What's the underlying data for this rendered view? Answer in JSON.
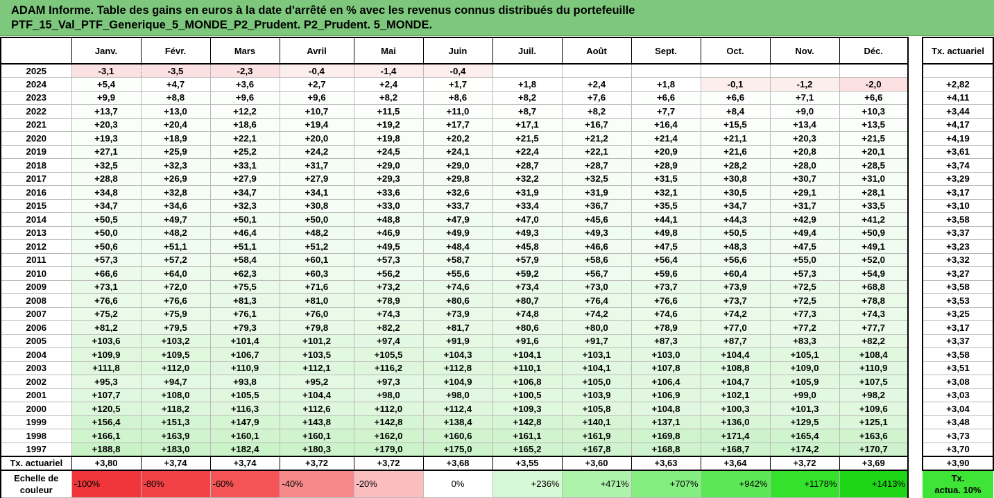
{
  "title": {
    "line1": "ADAM Informe. Table des gains en euros à la date d'arrêté en % avec les revenus connus distribués du portefeuille",
    "line2": "PTF_15_Val_PTF_Generique_5_MONDE_P2_Prudent. P2_Prudent. 5_MONDE."
  },
  "months": [
    "Janv.",
    "Févr.",
    "Mars",
    "Avril",
    "Mai",
    "Juin",
    "Juil.",
    "Août",
    "Sept.",
    "Oct.",
    "Nov.",
    "Déc."
  ],
  "actuarial_header": "Tx. actuariel",
  "rows": [
    {
      "year": "2025",
      "v": [
        "-3,1",
        "-3,5",
        "-2,3",
        "-0,4",
        "-1,4",
        "-0,4",
        "",
        "",
        "",
        "",
        "",
        ""
      ],
      "act": ""
    },
    {
      "year": "2024",
      "v": [
        "+5,4",
        "+4,7",
        "+3,6",
        "+2,7",
        "+2,4",
        "+1,7",
        "+1,8",
        "+2,4",
        "+1,8",
        "-0,1",
        "-1,2",
        "-2,0"
      ],
      "act": "+2,82"
    },
    {
      "year": "2023",
      "v": [
        "+9,9",
        "+8,8",
        "+9,6",
        "+9,6",
        "+8,2",
        "+8,6",
        "+8,2",
        "+7,6",
        "+6,6",
        "+6,6",
        "+7,1",
        "+6,6"
      ],
      "act": "+4,11"
    },
    {
      "year": "2022",
      "v": [
        "+13,7",
        "+13,0",
        "+12,2",
        "+10,7",
        "+11,5",
        "+11,0",
        "+8,7",
        "+8,2",
        "+7,7",
        "+8,4",
        "+9,0",
        "+10,3"
      ],
      "act": "+3,44"
    },
    {
      "year": "2021",
      "v": [
        "+20,3",
        "+20,4",
        "+18,6",
        "+19,4",
        "+19,2",
        "+17,7",
        "+17,1",
        "+16,7",
        "+16,4",
        "+15,5",
        "+13,4",
        "+13,5"
      ],
      "act": "+4,17"
    },
    {
      "year": "2020",
      "v": [
        "+19,3",
        "+18,9",
        "+22,1",
        "+20,0",
        "+19,8",
        "+20,2",
        "+21,5",
        "+21,2",
        "+21,4",
        "+21,1",
        "+20,3",
        "+21,5"
      ],
      "act": "+4,19"
    },
    {
      "year": "2019",
      "v": [
        "+27,1",
        "+25,9",
        "+25,2",
        "+24,2",
        "+24,5",
        "+24,1",
        "+22,4",
        "+22,1",
        "+20,9",
        "+21,6",
        "+20,8",
        "+20,1"
      ],
      "act": "+3,61"
    },
    {
      "year": "2018",
      "v": [
        "+32,5",
        "+32,3",
        "+33,1",
        "+31,7",
        "+29,0",
        "+29,0",
        "+28,7",
        "+28,7",
        "+28,9",
        "+28,2",
        "+28,0",
        "+28,5"
      ],
      "act": "+3,74"
    },
    {
      "year": "2017",
      "v": [
        "+28,8",
        "+26,9",
        "+27,9",
        "+27,9",
        "+29,3",
        "+29,8",
        "+32,2",
        "+32,5",
        "+31,5",
        "+30,8",
        "+30,7",
        "+31,0"
      ],
      "act": "+3,29"
    },
    {
      "year": "2016",
      "v": [
        "+34,8",
        "+32,8",
        "+34,7",
        "+34,1",
        "+33,6",
        "+32,6",
        "+31,9",
        "+31,9",
        "+32,1",
        "+30,5",
        "+29,1",
        "+28,1"
      ],
      "act": "+3,17"
    },
    {
      "year": "2015",
      "v": [
        "+34,7",
        "+34,6",
        "+32,3",
        "+30,8",
        "+33,0",
        "+33,7",
        "+33,4",
        "+36,7",
        "+35,5",
        "+34,7",
        "+31,7",
        "+33,5"
      ],
      "act": "+3,10"
    },
    {
      "year": "2014",
      "v": [
        "+50,5",
        "+49,7",
        "+50,1",
        "+50,0",
        "+48,8",
        "+47,9",
        "+47,0",
        "+45,6",
        "+44,1",
        "+44,3",
        "+42,9",
        "+41,2"
      ],
      "act": "+3,58"
    },
    {
      "year": "2013",
      "v": [
        "+50,0",
        "+48,2",
        "+46,4",
        "+48,2",
        "+46,9",
        "+49,9",
        "+49,3",
        "+49,3",
        "+49,8",
        "+50,5",
        "+49,4",
        "+50,9"
      ],
      "act": "+3,37"
    },
    {
      "year": "2012",
      "v": [
        "+50,6",
        "+51,1",
        "+51,1",
        "+51,2",
        "+49,5",
        "+48,4",
        "+45,8",
        "+46,6",
        "+47,5",
        "+48,3",
        "+47,5",
        "+49,1"
      ],
      "act": "+3,23"
    },
    {
      "year": "2011",
      "v": [
        "+57,3",
        "+57,2",
        "+58,4",
        "+60,1",
        "+57,3",
        "+58,7",
        "+57,9",
        "+58,6",
        "+56,4",
        "+56,6",
        "+55,0",
        "+52,0"
      ],
      "act": "+3,32"
    },
    {
      "year": "2010",
      "v": [
        "+66,6",
        "+64,0",
        "+62,3",
        "+60,3",
        "+56,2",
        "+55,6",
        "+59,2",
        "+56,7",
        "+59,6",
        "+60,4",
        "+57,3",
        "+54,9"
      ],
      "act": "+3,27"
    },
    {
      "year": "2009",
      "v": [
        "+73,1",
        "+72,0",
        "+75,5",
        "+71,6",
        "+73,2",
        "+74,6",
        "+73,4",
        "+73,0",
        "+73,7",
        "+73,9",
        "+72,5",
        "+68,8"
      ],
      "act": "+3,58"
    },
    {
      "year": "2008",
      "v": [
        "+76,6",
        "+76,6",
        "+81,3",
        "+81,0",
        "+78,9",
        "+80,6",
        "+80,7",
        "+76,4",
        "+76,6",
        "+73,7",
        "+72,5",
        "+78,8"
      ],
      "act": "+3,53"
    },
    {
      "year": "2007",
      "v": [
        "+75,2",
        "+75,9",
        "+76,1",
        "+76,0",
        "+74,3",
        "+73,9",
        "+74,8",
        "+74,2",
        "+74,6",
        "+74,2",
        "+77,3",
        "+74,3"
      ],
      "act": "+3,25"
    },
    {
      "year": "2006",
      "v": [
        "+81,2",
        "+79,5",
        "+79,3",
        "+79,8",
        "+82,2",
        "+81,7",
        "+80,6",
        "+80,0",
        "+78,9",
        "+77,0",
        "+77,2",
        "+77,7"
      ],
      "act": "+3,17"
    },
    {
      "year": "2005",
      "v": [
        "+103,6",
        "+103,2",
        "+101,4",
        "+101,2",
        "+97,4",
        "+91,9",
        "+91,6",
        "+91,7",
        "+87,3",
        "+87,7",
        "+83,3",
        "+82,2"
      ],
      "act": "+3,37"
    },
    {
      "year": "2004",
      "v": [
        "+109,9",
        "+109,5",
        "+106,7",
        "+103,5",
        "+105,5",
        "+104,3",
        "+104,1",
        "+103,1",
        "+103,0",
        "+104,4",
        "+105,1",
        "+108,4"
      ],
      "act": "+3,58"
    },
    {
      "year": "2003",
      "v": [
        "+111,8",
        "+112,0",
        "+110,9",
        "+112,1",
        "+116,2",
        "+112,8",
        "+110,1",
        "+104,1",
        "+107,8",
        "+108,8",
        "+109,0",
        "+110,9"
      ],
      "act": "+3,51"
    },
    {
      "year": "2002",
      "v": [
        "+95,3",
        "+94,7",
        "+93,8",
        "+95,2",
        "+97,3",
        "+104,9",
        "+106,8",
        "+105,0",
        "+106,4",
        "+104,7",
        "+105,9",
        "+107,5"
      ],
      "act": "+3,08"
    },
    {
      "year": "2001",
      "v": [
        "+107,7",
        "+108,0",
        "+105,5",
        "+104,4",
        "+98,0",
        "+98,0",
        "+100,5",
        "+103,9",
        "+106,9",
        "+102,1",
        "+99,0",
        "+98,2"
      ],
      "act": "+3,03"
    },
    {
      "year": "2000",
      "v": [
        "+120,5",
        "+118,2",
        "+116,3",
        "+112,6",
        "+112,0",
        "+112,4",
        "+109,3",
        "+105,8",
        "+104,8",
        "+100,3",
        "+101,3",
        "+109,6"
      ],
      "act": "+3,04"
    },
    {
      "year": "1999",
      "v": [
        "+156,4",
        "+151,3",
        "+147,9",
        "+143,8",
        "+142,8",
        "+138,4",
        "+142,8",
        "+140,1",
        "+137,1",
        "+136,0",
        "+129,5",
        "+125,1"
      ],
      "act": "+3,48"
    },
    {
      "year": "1998",
      "v": [
        "+166,1",
        "+163,9",
        "+160,1",
        "+160,1",
        "+162,0",
        "+160,6",
        "+161,1",
        "+161,9",
        "+169,8",
        "+171,4",
        "+165,4",
        "+163,6"
      ],
      "act": "+3,73"
    },
    {
      "year": "1997",
      "v": [
        "+188,8",
        "+183,0",
        "+182,4",
        "+180,3",
        "+179,0",
        "+175,0",
        "+165,2",
        "+167,8",
        "+168,8",
        "+168,7",
        "+174,2",
        "+170,7"
      ],
      "act": "+3,70"
    }
  ],
  "actuarial_row": {
    "label": "Tx. actuariel",
    "values": [
      "+3,80",
      "+3,74",
      "+3,74",
      "+3,72",
      "+3,72",
      "+3,68",
      "+3,55",
      "+3,60",
      "+3,63",
      "+3,64",
      "+3,72",
      "+3,69"
    ],
    "total": "+3,90"
  },
  "color_scale": {
    "label_line1": "Echelle de",
    "label_line2": "couleur",
    "steps": [
      {
        "label": "-100%",
        "color": "#f0363a",
        "align": "left"
      },
      {
        "label": "-80%",
        "color": "#f34245",
        "align": "left"
      },
      {
        "label": "-60%",
        "color": "#f55457",
        "align": "left"
      },
      {
        "label": "-40%",
        "color": "#f8898b",
        "align": "left"
      },
      {
        "label": "-20%",
        "color": "#fbbdbe",
        "align": "left"
      },
      {
        "label": "0%",
        "color": "#ffffff",
        "align": "center"
      },
      {
        "label": "+236%",
        "color": "#d6f8d4",
        "align": "right"
      },
      {
        "label": "+471%",
        "color": "#aef3aa",
        "align": "right"
      },
      {
        "label": "+707%",
        "color": "#85ee80",
        "align": "right"
      },
      {
        "label": "+942%",
        "color": "#5ce856",
        "align": "right"
      },
      {
        "label": "+1178%",
        "color": "#34e22c",
        "align": "right"
      },
      {
        "label": "+1413%",
        "color": "#1ed615",
        "align": "right"
      }
    ],
    "actuarial_label_line1": "Tx.",
    "actuarial_label_line2": "actua. 10%",
    "actuarial_color": "#3ee436"
  },
  "colors": {
    "title_background": "#7ec87e",
    "negative_light": "#fde8e8",
    "positive_scale_start": "#ffffff",
    "positive_scale_end": "#c9f2c6"
  }
}
